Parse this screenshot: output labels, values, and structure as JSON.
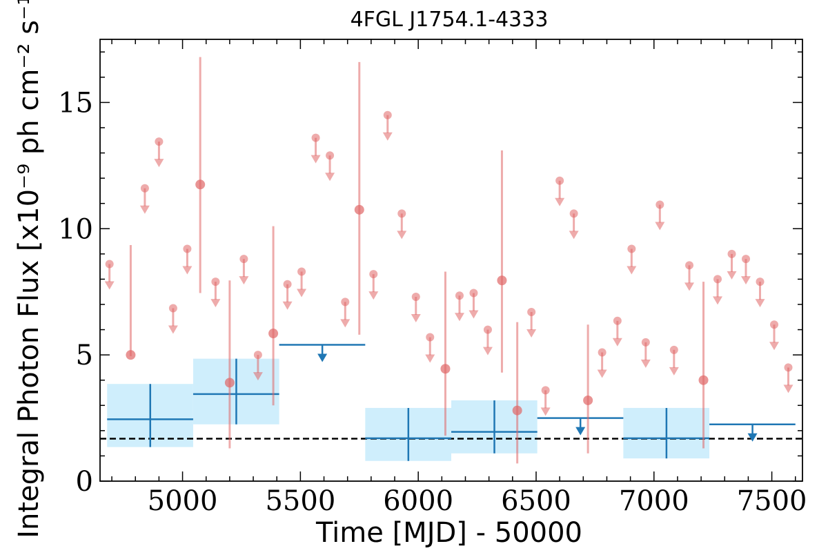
{
  "chart_data": {
    "type": "scatter",
    "title": "4FGL J1754.1-4333",
    "xlabel": "Time [MJD] - 50000",
    "ylabel": "Integral Photon Flux [x10⁻⁹ ph cm⁻² s⁻¹]",
    "xlim": [
      4650,
      7630
    ],
    "ylim": [
      0,
      17.5
    ],
    "xticks": [
      5000,
      5500,
      6000,
      6500,
      7000,
      7500
    ],
    "yticks": [
      0,
      5,
      10,
      15
    ],
    "grid": false,
    "reference_line": {
      "y": 1.68,
      "style": "dashed",
      "color": "#000000"
    },
    "colors": {
      "fine": "#e06666",
      "coarse": "#1f77b4",
      "coarse_band": "#cfeefc"
    },
    "fine_bins": {
      "detections": [
        {
          "x": 4780,
          "y": 5.0,
          "err_lo": 4.95,
          "err_hi": 9.35
        },
        {
          "x": 5075,
          "y": 11.75,
          "err_lo": 7.45,
          "err_hi": 16.8
        },
        {
          "x": 5200,
          "y": 3.9,
          "err_lo": 1.3,
          "err_hi": 7.95
        },
        {
          "x": 5385,
          "y": 5.85,
          "err_lo": 3.0,
          "err_hi": 10.1
        },
        {
          "x": 5750,
          "y": 10.75,
          "err_lo": 5.8,
          "err_hi": 16.6
        },
        {
          "x": 6115,
          "y": 4.45,
          "err_lo": 1.8,
          "err_hi": 8.3
        },
        {
          "x": 6355,
          "y": 7.95,
          "err_lo": 4.3,
          "err_hi": 13.1
        },
        {
          "x": 6420,
          "y": 2.8,
          "err_lo": 0.7,
          "err_hi": 6.3
        },
        {
          "x": 6720,
          "y": 3.2,
          "err_lo": 1.1,
          "err_hi": 6.2
        },
        {
          "x": 7210,
          "y": 4.0,
          "err_lo": 1.3,
          "err_hi": 7.9
        }
      ],
      "upper_limits": [
        {
          "x": 4690,
          "y": 8.6
        },
        {
          "x": 4840,
          "y": 11.6
        },
        {
          "x": 4900,
          "y": 13.45
        },
        {
          "x": 4960,
          "y": 6.85
        },
        {
          "x": 5020,
          "y": 9.2
        },
        {
          "x": 5140,
          "y": 7.9
        },
        {
          "x": 5260,
          "y": 8.8
        },
        {
          "x": 5320,
          "y": 5.0
        },
        {
          "x": 5445,
          "y": 7.8
        },
        {
          "x": 5505,
          "y": 8.3
        },
        {
          "x": 5565,
          "y": 13.6
        },
        {
          "x": 5625,
          "y": 12.9
        },
        {
          "x": 5690,
          "y": 7.1
        },
        {
          "x": 5810,
          "y": 8.2
        },
        {
          "x": 5870,
          "y": 14.5
        },
        {
          "x": 5930,
          "y": 10.6
        },
        {
          "x": 5990,
          "y": 7.3
        },
        {
          "x": 6050,
          "y": 5.7
        },
        {
          "x": 6175,
          "y": 7.35
        },
        {
          "x": 6235,
          "y": 7.45
        },
        {
          "x": 6295,
          "y": 6.0
        },
        {
          "x": 6480,
          "y": 6.7
        },
        {
          "x": 6540,
          "y": 3.6
        },
        {
          "x": 6600,
          "y": 11.9
        },
        {
          "x": 6660,
          "y": 10.6
        },
        {
          "x": 6780,
          "y": 5.1
        },
        {
          "x": 6845,
          "y": 6.35
        },
        {
          "x": 6905,
          "y": 9.2
        },
        {
          "x": 6965,
          "y": 5.5
        },
        {
          "x": 7025,
          "y": 10.95
        },
        {
          "x": 7085,
          "y": 5.2
        },
        {
          "x": 7150,
          "y": 8.55
        },
        {
          "x": 7270,
          "y": 8.0
        },
        {
          "x": 7330,
          "y": 9.0
        },
        {
          "x": 7390,
          "y": 8.8
        },
        {
          "x": 7450,
          "y": 7.9
        },
        {
          "x": 7510,
          "y": 6.2
        },
        {
          "x": 7570,
          "y": 4.5
        }
      ]
    },
    "coarse_bins": {
      "detections": [
        {
          "x_start": 4680,
          "x_end": 5045,
          "x": 4863,
          "y": 2.45,
          "err_lo": 1.35,
          "err_hi": 3.85
        },
        {
          "x_start": 5045,
          "x_end": 5410,
          "x": 5228,
          "y": 3.45,
          "err_lo": 2.25,
          "err_hi": 4.85
        },
        {
          "x_start": 5775,
          "x_end": 6140,
          "x": 5958,
          "y": 1.7,
          "err_lo": 0.8,
          "err_hi": 2.9
        },
        {
          "x_start": 6140,
          "x_end": 6505,
          "x": 6323,
          "y": 1.95,
          "err_lo": 1.1,
          "err_hi": 3.2
        },
        {
          "x_start": 6870,
          "x_end": 7235,
          "x": 7053,
          "y": 1.7,
          "err_lo": 0.9,
          "err_hi": 2.9
        }
      ],
      "upper_limits": [
        {
          "x_start": 5410,
          "x_end": 5775,
          "x": 5593,
          "y": 5.4
        },
        {
          "x_start": 6505,
          "x_end": 6870,
          "x": 6688,
          "y": 2.5
        },
        {
          "x_start": 7235,
          "x_end": 7600,
          "x": 7418,
          "y": 2.25
        }
      ]
    }
  }
}
